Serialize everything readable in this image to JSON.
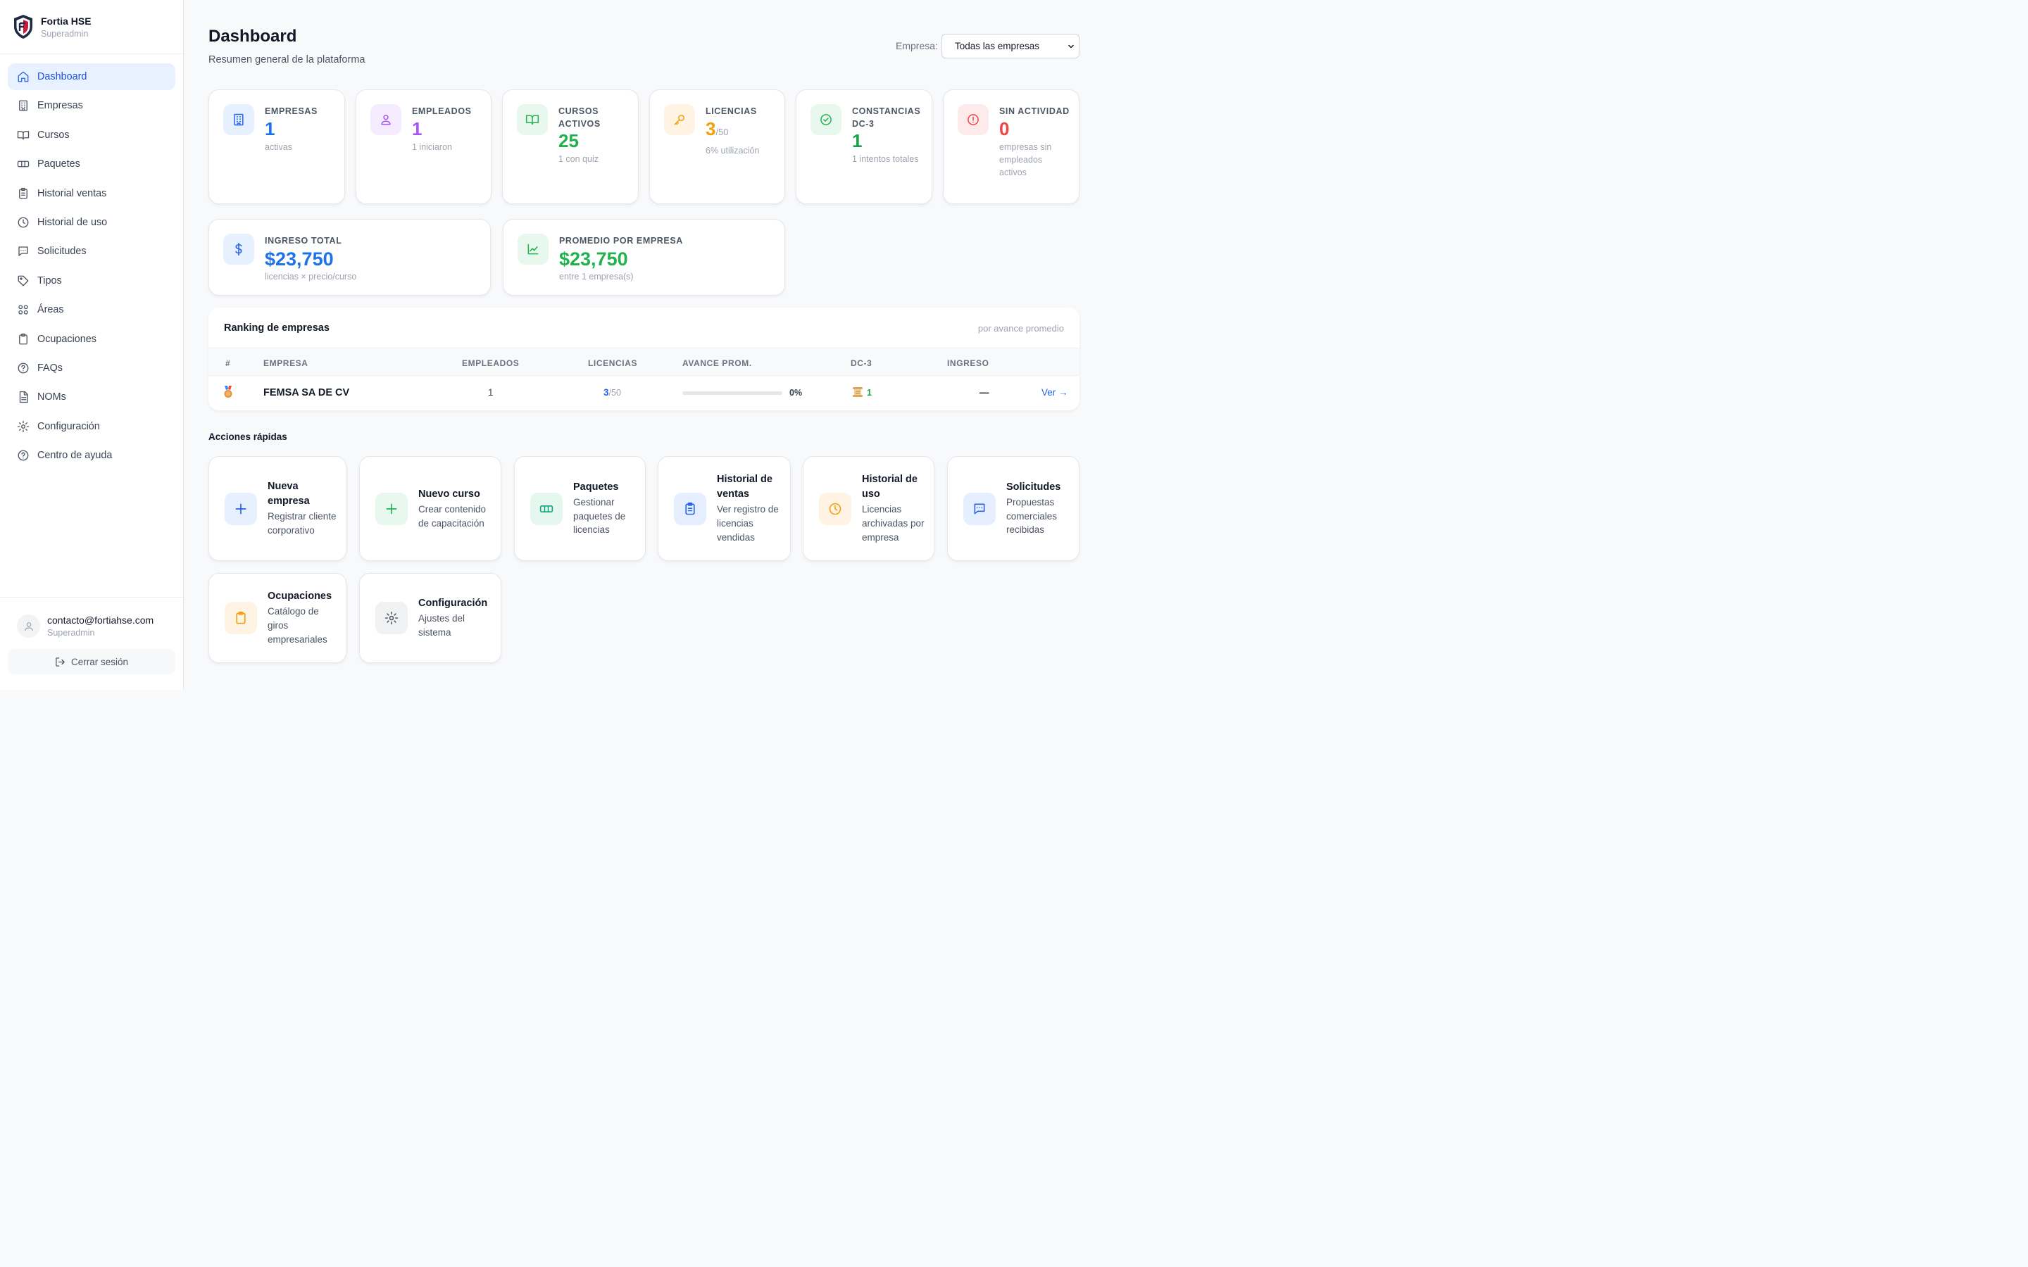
{
  "colors": {
    "primary": "#2563eb",
    "blue": "#1d72e8",
    "purple": "#a855f7",
    "green": "#22b14c",
    "orange": "#f59e0b",
    "red": "#ef4444"
  },
  "brand": {
    "name": "Fortia HSE",
    "role": "Superadmin",
    "logo_icon": "shield-logo-icon"
  },
  "sidebar": {
    "items": [
      {
        "label": "Dashboard",
        "icon": "home-icon"
      },
      {
        "label": "Empresas",
        "icon": "building-icon"
      },
      {
        "label": "Cursos",
        "icon": "book-icon"
      },
      {
        "label": "Paquetes",
        "icon": "ticket-icon"
      },
      {
        "label": "Historial ventas",
        "icon": "clipboard-icon"
      },
      {
        "label": "Historial de uso",
        "icon": "clock-icon"
      },
      {
        "label": "Solicitudes",
        "icon": "message-icon"
      },
      {
        "label": "Tipos",
        "icon": "tag-icon"
      },
      {
        "label": "Áreas",
        "icon": "grid-icon"
      },
      {
        "label": "Ocupaciones",
        "icon": "clipboard-icon"
      },
      {
        "label": "FAQs",
        "icon": "help-circle-icon"
      },
      {
        "label": "NOMs",
        "icon": "document-icon"
      },
      {
        "label": "Configuración",
        "icon": "gear-icon"
      },
      {
        "label": "Centro de ayuda",
        "icon": "help-circle-icon"
      }
    ],
    "active": "Dashboard"
  },
  "user": {
    "email": "contacto@fortiahse.com",
    "role": "Superadmin",
    "logout_label": "Cerrar sesión"
  },
  "header": {
    "title": "Dashboard",
    "subtitle": "Resumen general de la plataforma",
    "filter_label": "Empresa:",
    "filter_value": "Todas las empresas"
  },
  "stats": [
    {
      "label": "EMPRESAS",
      "value": "1",
      "denom": "",
      "sub": "activas",
      "icon": "building-icon"
    },
    {
      "label": "EMPLEADOS",
      "value": "1",
      "denom": "",
      "sub": "1 iniciaron",
      "icon": "users-icon"
    },
    {
      "label": "CURSOS ACTIVOS",
      "value": "25",
      "denom": "",
      "sub": "1 con quiz",
      "icon": "book-icon"
    },
    {
      "label": "LICENCIAS",
      "value": "3",
      "denom": "/50",
      "sub": "6% utilización",
      "icon": "key-icon"
    },
    {
      "label": "CONSTANCIAS DC-3",
      "value": "1",
      "denom": "",
      "sub": "1 intentos totales",
      "icon": "check-circle-icon"
    },
    {
      "label": "SIN ACTIVIDAD",
      "value": "0",
      "denom": "",
      "sub": "empresas sin empleados activos",
      "icon": "alert-circle-icon"
    }
  ],
  "revenue": [
    {
      "label": "INGRESO TOTAL",
      "value": "$23,750",
      "sub": "licencias × precio/curso",
      "icon": "dollar-icon"
    },
    {
      "label": "PROMEDIO POR EMPRESA",
      "value": "$23,750",
      "sub": "entre 1 empresa(s)",
      "icon": "chart-line-icon"
    }
  ],
  "ranking": {
    "title": "Ranking de empresas",
    "hint": "por avance promedio",
    "columns": [
      "#",
      "EMPRESA",
      "EMPLEADOS",
      "LICENCIAS",
      "AVANCE PROM.",
      "DC-3",
      "INGRESO"
    ],
    "rows": [
      {
        "rank_icon": "medal-icon",
        "empresa": "FEMSA SA DE CV",
        "empleados": "1",
        "licencias_used": "3",
        "licencias_total": "/50",
        "avance": "0%",
        "avance_value": 0,
        "dc3_icon": "scroll-icon",
        "dc3": "1",
        "ingreso": "—",
        "action": "Ver →"
      }
    ]
  },
  "quick_actions": {
    "title": "Acciones rápidas",
    "items": [
      {
        "name": "Nueva empresa",
        "desc": "Registrar cliente corporativo",
        "icon": "plus-icon"
      },
      {
        "name": "Nuevo curso",
        "desc": "Crear contenido de capacitación",
        "icon": "plus-icon"
      },
      {
        "name": "Paquetes",
        "desc": "Gestionar paquetes de licencias",
        "icon": "ticket-icon"
      },
      {
        "name": "Historial de ventas",
        "desc": "Ver registro de licencias vendidas",
        "icon": "clipboard-icon"
      },
      {
        "name": "Historial de uso",
        "desc": "Licencias archivadas por empresa",
        "icon": "clock-icon"
      },
      {
        "name": "Solicitudes",
        "desc": "Propuestas comerciales recibidas",
        "icon": "message-icon"
      },
      {
        "name": "Ocupaciones",
        "desc": "Catálogo de giros empresariales",
        "icon": "clipboard-icon"
      },
      {
        "name": "Configuración",
        "desc": "Ajustes del sistema",
        "icon": "gear-icon"
      }
    ]
  }
}
